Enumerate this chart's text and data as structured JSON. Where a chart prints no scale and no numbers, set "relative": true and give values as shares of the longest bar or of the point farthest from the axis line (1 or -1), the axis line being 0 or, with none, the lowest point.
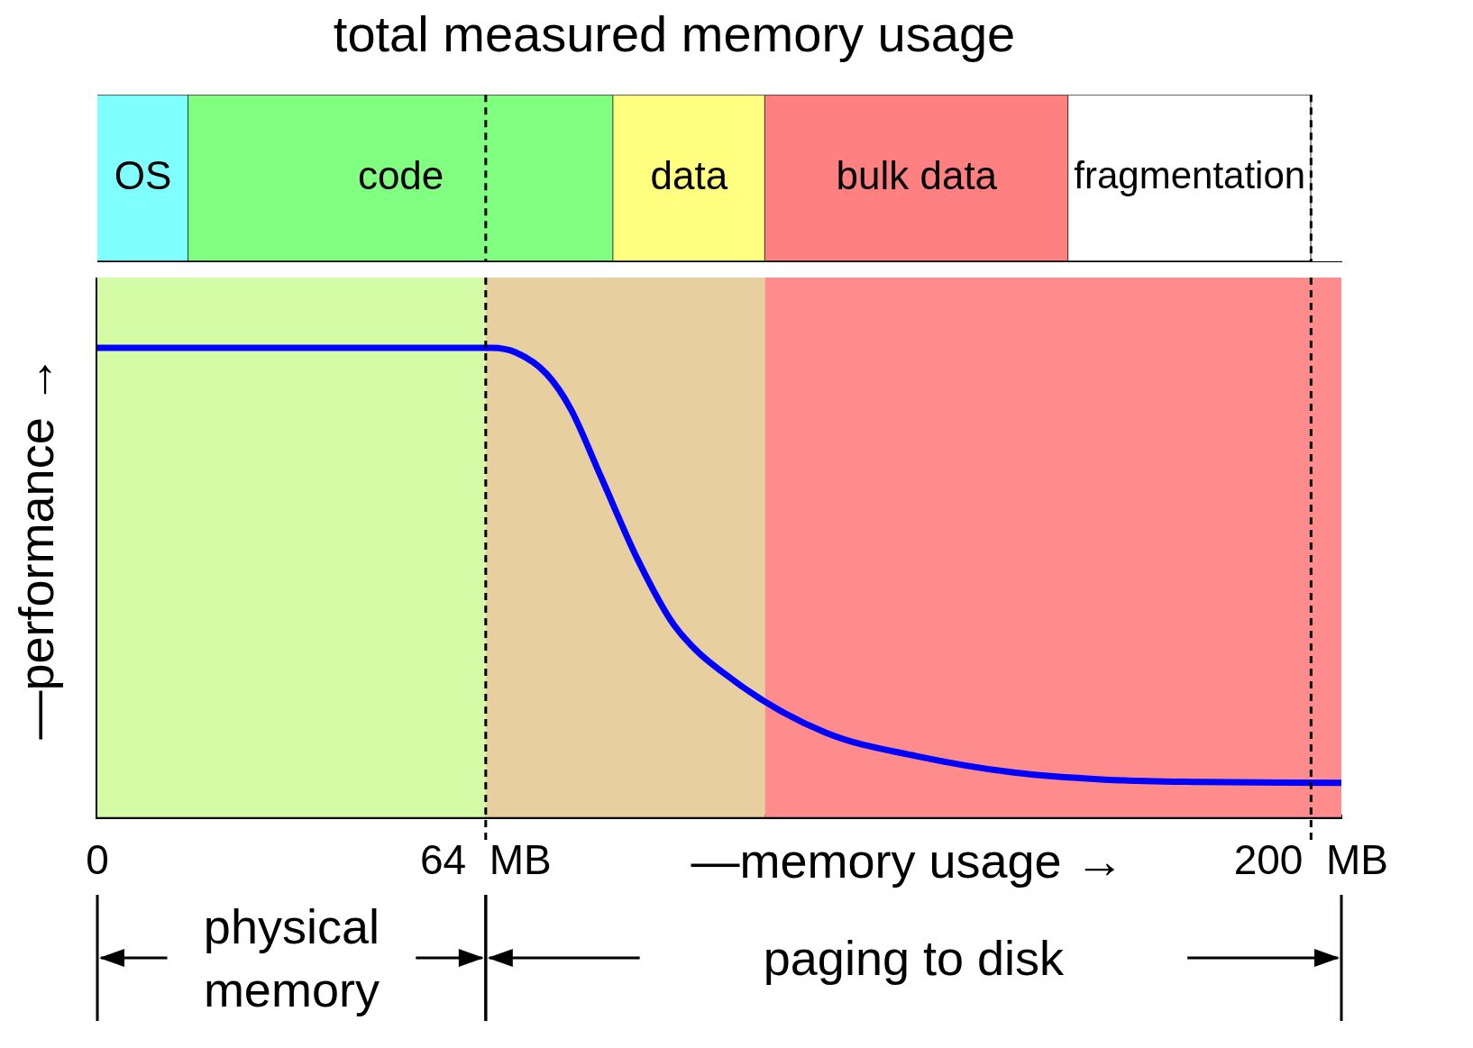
{
  "chart_data": [
    {
      "type": "bar",
      "title": "total measured memory usage",
      "orientation": "horizontal",
      "stacked": true,
      "categories": [
        null
      ],
      "xlim": [
        0,
        205
      ],
      "tick_labels": false,
      "legend": false,
      "grid": false,
      "series": [
        {
          "name": "OS",
          "color": "#80ffff",
          "values": [
            15
          ]
        },
        {
          "name": "code",
          "color": "#80ff80",
          "values": [
            70
          ]
        },
        {
          "name": "data",
          "color": "#ffff80",
          "values": [
            25
          ]
        },
        {
          "name": "bulk data",
          "color": "#ff8080",
          "values": [
            50
          ]
        },
        {
          "name": "fragmentation",
          "color": "#ffffff",
          "values": [
            40
          ]
        }
      ],
      "ref_lines": [
        {
          "axis": "x",
          "value": 64,
          "line_style": "dashed"
        },
        {
          "axis": "x",
          "value": 200,
          "line_style": "dashed"
        }
      ]
    },
    {
      "type": "line",
      "relative": true,
      "xlabel": "—memory usage →",
      "ylabel": "—performance →",
      "xlim": [
        0,
        205
      ],
      "xticks": [
        0,
        {
          "value": 64,
          "label": "64  MB"
        },
        {
          "value": 200,
          "label": "200  MB"
        }
      ],
      "tick_labels": "x",
      "grid": false,
      "legend": false,
      "marker": "none",
      "line_style": "solid",
      "x": [
        0,
        65,
        69,
        74,
        78,
        83,
        89,
        95,
        105,
        120,
        135,
        151,
        166,
        182,
        205
      ],
      "series": [
        {
          "color": "#0000ff",
          "values": [
            1,
            1,
            0.99,
            0.945,
            0.87,
            0.725,
            0.55,
            0.41,
            0.29,
            0.18,
            0.13,
            0.095,
            0.08,
            0.075,
            0.073
          ]
        }
      ],
      "bands": [
        {
          "axis": "x",
          "from": 0,
          "to": 64,
          "color": "#d4fca6"
        },
        {
          "axis": "x",
          "from": 64,
          "to": 110,
          "color": "#e8cfa0"
        },
        {
          "axis": "x",
          "from": 110,
          "to": 205,
          "color": "#fe8c8c"
        }
      ],
      "ref_lines": [
        {
          "axis": "x",
          "value": 64,
          "line_style": "dashed"
        },
        {
          "axis": "x",
          "value": 200,
          "line_style": "dashed"
        }
      ],
      "annotations": [
        "physical memory",
        "paging to disk"
      ]
    }
  ]
}
